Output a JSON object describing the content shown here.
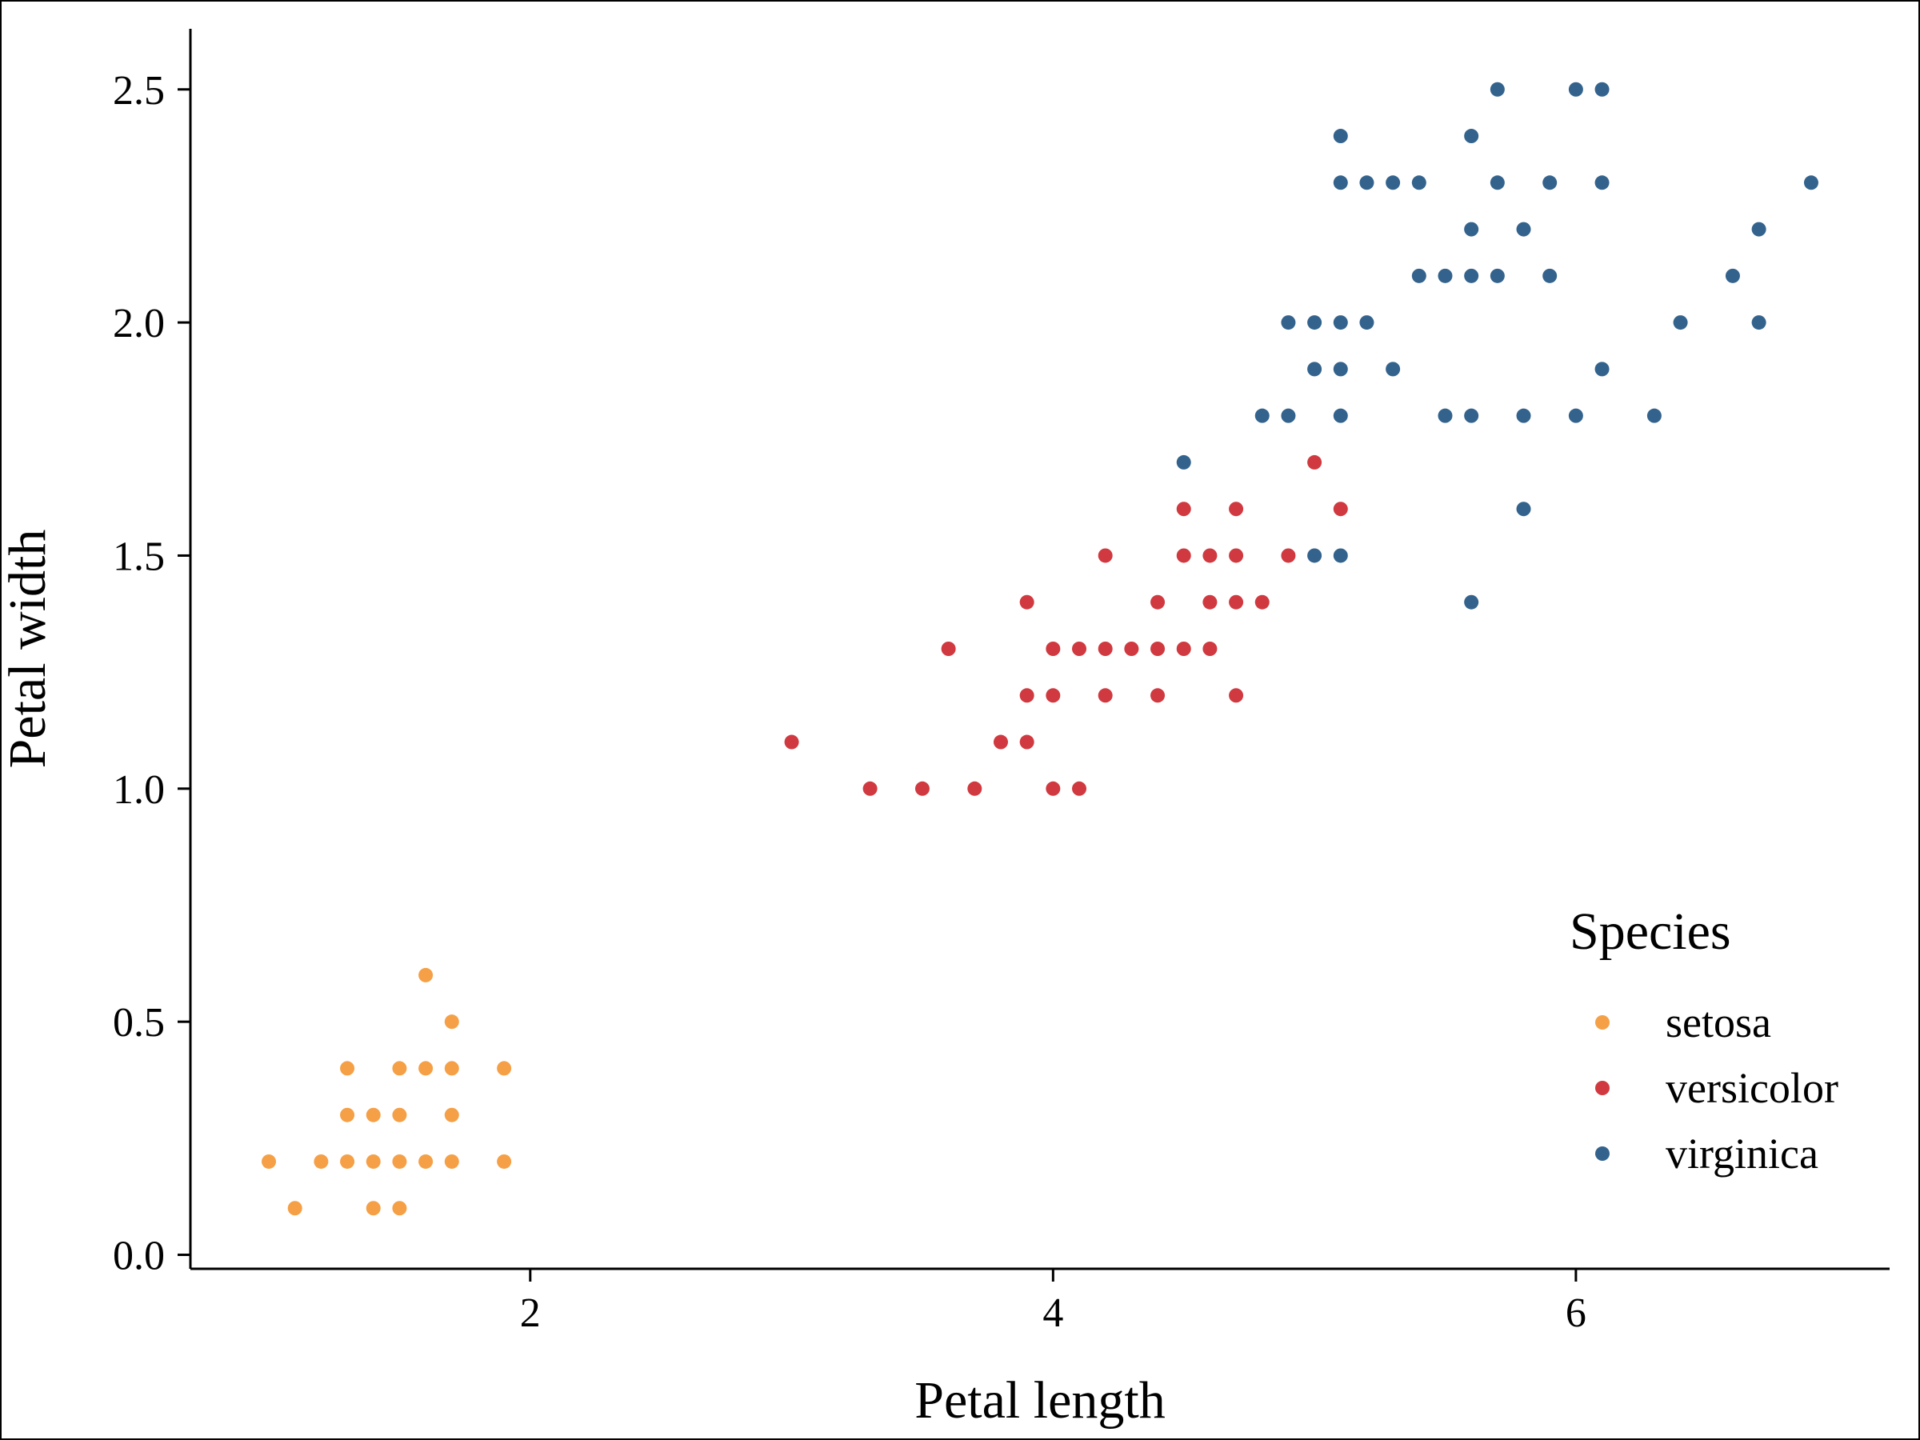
{
  "chart_data": {
    "type": "scatter",
    "title": "",
    "xlabel": "Petal length",
    "ylabel": "Petal width",
    "xlim": [
      0.7,
      7.2
    ],
    "ylim": [
      -0.03,
      2.63
    ],
    "xticks": [
      2,
      4,
      6
    ],
    "xtick_labels": [
      "2",
      "4",
      "6"
    ],
    "yticks": [
      0,
      0.5,
      1,
      1.5,
      2,
      2.5
    ],
    "ytick_labels": [
      "0.0",
      "0.5",
      "1.0",
      "1.5",
      "2.0",
      "2.5"
    ],
    "grid": false,
    "legend": {
      "title": "Species",
      "placement": "bottom-right"
    },
    "series": [
      {
        "name": "setosa",
        "color": "#F5A046",
        "points": [
          [
            1.0,
            0.2
          ],
          [
            1.1,
            0.1
          ],
          [
            1.2,
            0.2
          ],
          [
            1.3,
            0.2
          ],
          [
            1.3,
            0.3
          ],
          [
            1.3,
            0.4
          ],
          [
            1.4,
            0.1
          ],
          [
            1.4,
            0.2
          ],
          [
            1.4,
            0.3
          ],
          [
            1.5,
            0.1
          ],
          [
            1.5,
            0.2
          ],
          [
            1.5,
            0.3
          ],
          [
            1.5,
            0.4
          ],
          [
            1.6,
            0.2
          ],
          [
            1.6,
            0.4
          ],
          [
            1.6,
            0.6
          ],
          [
            1.7,
            0.2
          ],
          [
            1.7,
            0.3
          ],
          [
            1.7,
            0.4
          ],
          [
            1.7,
            0.5
          ],
          [
            1.9,
            0.2
          ],
          [
            1.9,
            0.4
          ]
        ]
      },
      {
        "name": "versicolor",
        "color": "#D0393F",
        "points": [
          [
            3.0,
            1.1
          ],
          [
            3.3,
            1.0
          ],
          [
            3.5,
            1.0
          ],
          [
            3.6,
            1.3
          ],
          [
            3.7,
            1.0
          ],
          [
            3.8,
            1.1
          ],
          [
            3.9,
            1.1
          ],
          [
            3.9,
            1.2
          ],
          [
            3.9,
            1.4
          ],
          [
            4.0,
            1.0
          ],
          [
            4.0,
            1.2
          ],
          [
            4.0,
            1.3
          ],
          [
            4.1,
            1.0
          ],
          [
            4.1,
            1.3
          ],
          [
            4.2,
            1.2
          ],
          [
            4.2,
            1.3
          ],
          [
            4.2,
            1.5
          ],
          [
            4.3,
            1.3
          ],
          [
            4.4,
            1.2
          ],
          [
            4.4,
            1.3
          ],
          [
            4.4,
            1.4
          ],
          [
            4.5,
            1.3
          ],
          [
            4.5,
            1.5
          ],
          [
            4.5,
            1.6
          ],
          [
            4.6,
            1.3
          ],
          [
            4.6,
            1.4
          ],
          [
            4.6,
            1.5
          ],
          [
            4.7,
            1.2
          ],
          [
            4.7,
            1.4
          ],
          [
            4.7,
            1.5
          ],
          [
            4.7,
            1.6
          ],
          [
            4.8,
            1.4
          ],
          [
            4.9,
            1.5
          ],
          [
            5.0,
            1.7
          ],
          [
            5.1,
            1.6
          ]
        ]
      },
      {
        "name": "virginica",
        "color": "#33638D",
        "points": [
          [
            4.5,
            1.7
          ],
          [
            4.8,
            1.8
          ],
          [
            4.9,
            1.8
          ],
          [
            4.9,
            2.0
          ],
          [
            5.0,
            1.5
          ],
          [
            5.0,
            1.9
          ],
          [
            5.0,
            2.0
          ],
          [
            5.1,
            1.5
          ],
          [
            5.1,
            1.8
          ],
          [
            5.1,
            1.9
          ],
          [
            5.1,
            2.0
          ],
          [
            5.1,
            2.3
          ],
          [
            5.1,
            2.4
          ],
          [
            5.2,
            2.0
          ],
          [
            5.2,
            2.3
          ],
          [
            5.3,
            1.9
          ],
          [
            5.3,
            2.3
          ],
          [
            5.4,
            2.1
          ],
          [
            5.4,
            2.3
          ],
          [
            5.5,
            1.8
          ],
          [
            5.5,
            2.1
          ],
          [
            5.6,
            1.4
          ],
          [
            5.6,
            1.8
          ],
          [
            5.6,
            2.1
          ],
          [
            5.6,
            2.2
          ],
          [
            5.6,
            2.4
          ],
          [
            5.7,
            2.1
          ],
          [
            5.7,
            2.3
          ],
          [
            5.7,
            2.5
          ],
          [
            5.8,
            1.6
          ],
          [
            5.8,
            1.8
          ],
          [
            5.8,
            2.2
          ],
          [
            5.9,
            2.1
          ],
          [
            5.9,
            2.3
          ],
          [
            6.0,
            1.8
          ],
          [
            6.0,
            2.5
          ],
          [
            6.1,
            1.9
          ],
          [
            6.1,
            2.3
          ],
          [
            6.1,
            2.5
          ],
          [
            6.3,
            1.8
          ],
          [
            6.4,
            2.0
          ],
          [
            6.6,
            2.1
          ],
          [
            6.7,
            2.0
          ],
          [
            6.7,
            2.2
          ],
          [
            6.9,
            2.3
          ]
        ]
      }
    ]
  }
}
